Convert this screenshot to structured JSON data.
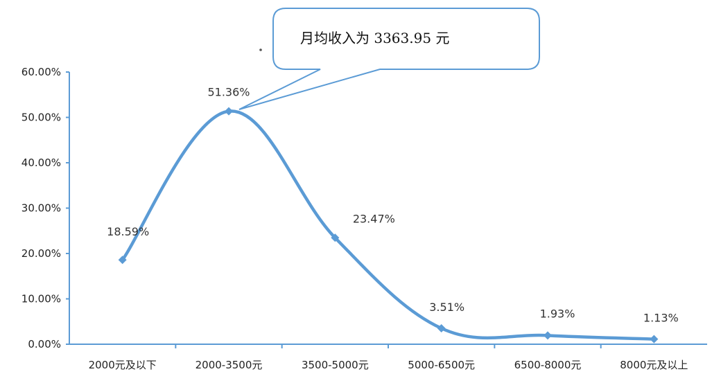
{
  "chart_data": {
    "type": "line",
    "categories": [
      "2000元及以下",
      "2000-3500元",
      "3500-5000元",
      "5000-6500元",
      "6500-8000元",
      "8000元及以上"
    ],
    "values": [
      18.59,
      51.36,
      23.47,
      3.51,
      1.93,
      1.13
    ],
    "data_labels": [
      "18.59%",
      "51.36%",
      "23.47%",
      "3.51%",
      "1.93%",
      "1.13%"
    ],
    "yticks": [
      "0.00%",
      "10.00%",
      "20.00%",
      "30.00%",
      "40.00%",
      "50.00%",
      "60.00%"
    ],
    "ylim": [
      0,
      60
    ],
    "smooth": true,
    "grid": false,
    "line_color": "#5b9bd5",
    "annotation": {
      "text": "月均收入为 3363.95 元",
      "points_to": "2000-3500元"
    }
  }
}
